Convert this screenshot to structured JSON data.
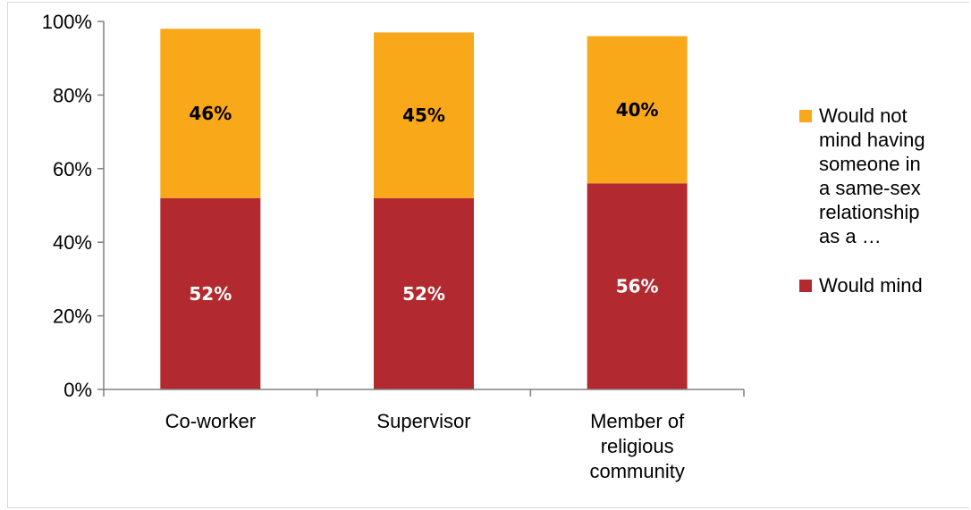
{
  "chart_data": {
    "type": "bar",
    "stacked": true,
    "categories": [
      "Co-worker",
      "Supervisor",
      "Member of religious community"
    ],
    "category_lines": [
      [
        "Co-worker"
      ],
      [
        "Supervisor"
      ],
      [
        "Member of",
        "religious",
        "community"
      ]
    ],
    "series": [
      {
        "name": "Would mind",
        "values": [
          52,
          52,
          56
        ],
        "color": "#b22a2f",
        "label_color": "#ffffff"
      },
      {
        "name": "Would not mind having someone in a same-sex relationship as a …",
        "values": [
          46,
          45,
          40
        ],
        "color": "#f9a81a",
        "label_color": "#000000"
      }
    ],
    "data_labels": [
      [
        "52%",
        "52%",
        "56%"
      ],
      [
        "46%",
        "45%",
        "40%"
      ]
    ],
    "ylim": [
      0,
      100
    ],
    "yticks": [
      0,
      20,
      40,
      60,
      80,
      100
    ],
    "ytick_labels": [
      "0%",
      "20%",
      "40%",
      "60%",
      "80%",
      "100%"
    ],
    "grid": false,
    "legend_position": "right"
  },
  "legend": {
    "items": [
      {
        "label_lines": [
          "Would not",
          "mind having",
          "someone in",
          "a same-sex",
          "relationship",
          "as a …"
        ],
        "color": "#f9a81a"
      },
      {
        "label_lines": [
          "Would mind"
        ],
        "color": "#b22a2f"
      }
    ]
  }
}
